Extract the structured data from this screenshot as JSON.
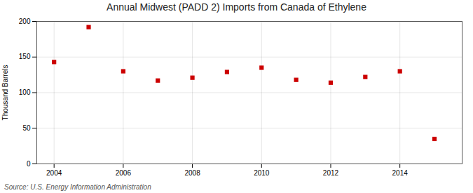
{
  "chart_data": {
    "type": "scatter",
    "title": "Annual Midwest (PADD 2) Imports from Canada of Ethylene",
    "ylabel": "Thousand Barrels",
    "source": "Source: U.S. Energy Information Administration",
    "x": [
      2004,
      2005,
      2006,
      2007,
      2008,
      2009,
      2010,
      2011,
      2012,
      2013,
      2014,
      2015
    ],
    "values": [
      143,
      192,
      130,
      117,
      121,
      129,
      135,
      118,
      114,
      122,
      130,
      35
    ],
    "color": "#cc0000",
    "marker": "square",
    "xlim": [
      2003.5,
      2015.8
    ],
    "xticks": [
      2004,
      2006,
      2008,
      2010,
      2012,
      2014
    ],
    "ylim": [
      0,
      200
    ],
    "yticks": [
      0,
      50,
      100,
      150,
      200
    ],
    "grid": true
  }
}
